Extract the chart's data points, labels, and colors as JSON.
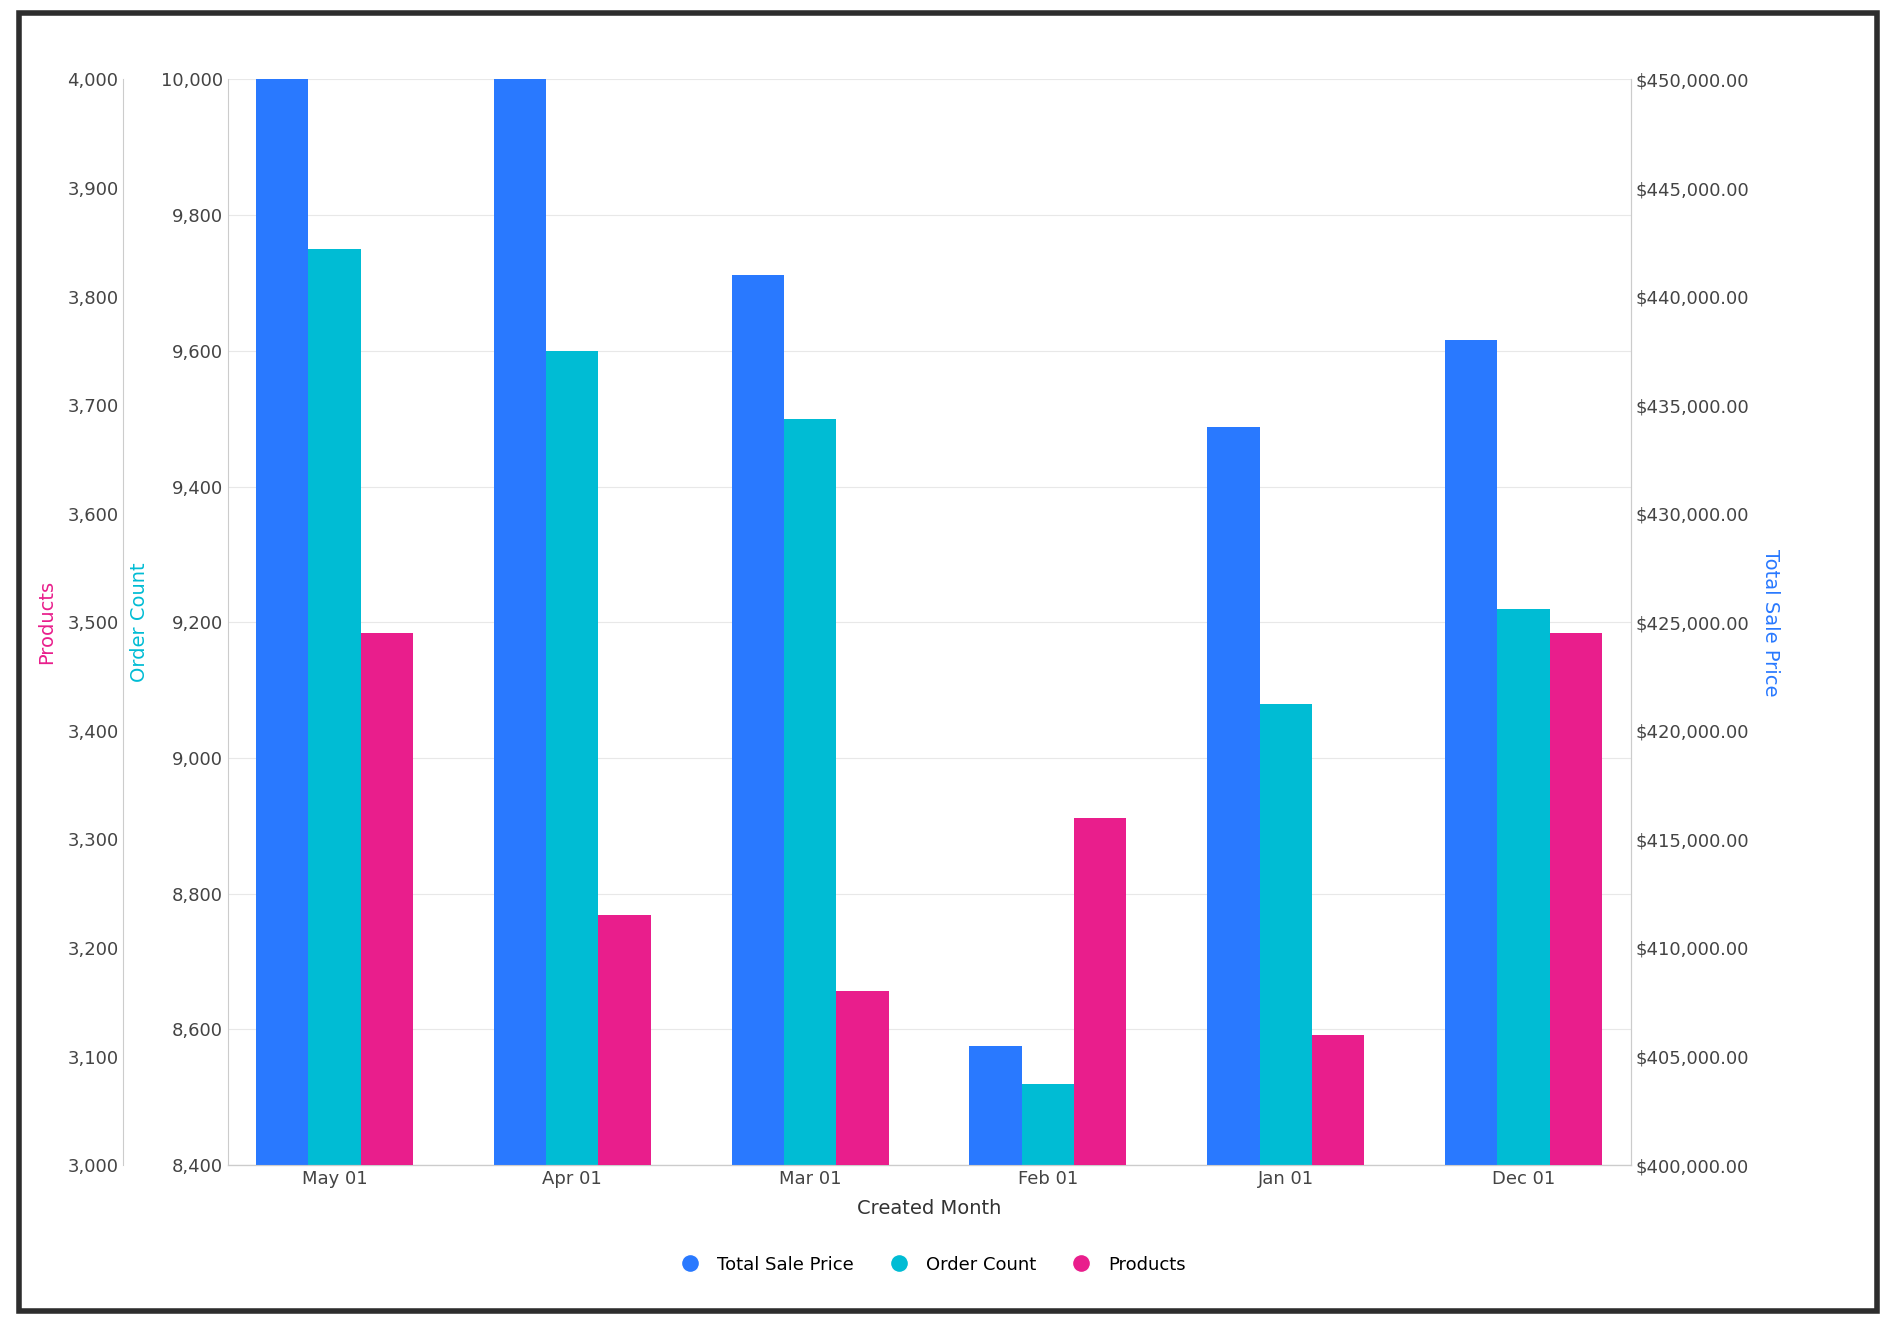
{
  "categories": [
    "May 01",
    "Apr 01",
    "Mar 01",
    "Feb 01",
    "Jan 01",
    "Dec 01"
  ],
  "total_sale_price": [
    450000,
    450000,
    441000,
    405500,
    434000,
    438000
  ],
  "order_count": [
    9750,
    9600,
    9500,
    8520,
    9080,
    9220
  ],
  "products": [
    3490,
    3230,
    3160,
    3320,
    3120,
    3490
  ],
  "bar_color_blue": "#2979FF",
  "bar_color_cyan": "#00BCD4",
  "bar_color_pink": "#E91E8C",
  "background_color": "#FFFFFF",
  "xlabel": "Created Month",
  "ylabel_left_products": "Products",
  "ylabel_left_orders": "Order Count",
  "ylabel_right": "Total Sale Price",
  "ylabel_products_color": "#E91E8C",
  "ylabel_orders_color": "#00BCD4",
  "ylabel_right_color": "#2979FF",
  "ylim_products": [
    3000,
    4000
  ],
  "ylim_orders": [
    8400,
    10000
  ],
  "ylim_right": [
    400000,
    450000
  ],
  "yticks_products": [
    3000,
    3100,
    3200,
    3300,
    3400,
    3500,
    3600,
    3700,
    3800,
    3900,
    4000
  ],
  "yticks_orders": [
    8400,
    8600,
    8800,
    9000,
    9200,
    9400,
    9600,
    9800,
    10000
  ],
  "yticks_right": [
    400000,
    405000,
    410000,
    415000,
    420000,
    425000,
    430000,
    435000,
    440000,
    445000,
    450000
  ],
  "legend_labels": [
    "Total Sale Price",
    "Order Count",
    "Products"
  ],
  "axis_label_fontsize": 14,
  "tick_fontsize": 13,
  "legend_fontsize": 13,
  "xlabel_fontsize": 14,
  "border_color": "#2d2d2d",
  "grid_color": "#e8e8e8"
}
